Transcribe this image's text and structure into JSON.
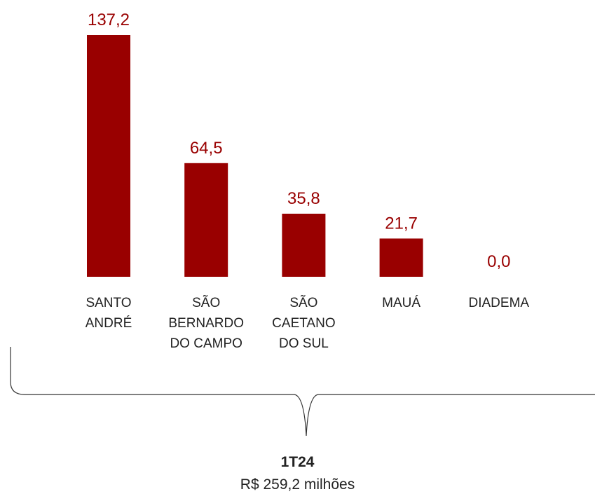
{
  "chart_data": {
    "type": "bar",
    "categories": [
      "SANTO ANDRÉ",
      "SÃO BERNARDO DO CAMPO",
      "SÃO CAETANO DO SUL",
      "MAUÁ",
      "DIADEMA"
    ],
    "values": [
      137.2,
      64.5,
      35.8,
      21.7,
      0.0
    ],
    "value_labels": [
      "137,2",
      "64,5",
      "35,8",
      "21,7",
      "0,0"
    ],
    "color": "#990000",
    "total_title": "1T24",
    "total_value": "R$ 259,2 milhões"
  }
}
